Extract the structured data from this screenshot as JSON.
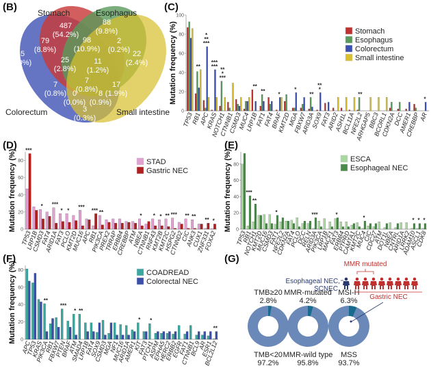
{
  "panels": {
    "B": "(B)",
    "C": "(C)",
    "D": "(D)",
    "E": "(E)",
    "F": "(F)",
    "G": "(G)"
  },
  "colors": {
    "stomach": "#c0302e",
    "esophagus": "#5a9a5a",
    "colorectum": "#3a50b0",
    "small_intestine": "#d8c030",
    "stad": "#e0a0d0",
    "gastric_nec": "#b02020",
    "esca": "#a8d8a0",
    "esophageal_nec": "#4a8a4a",
    "coadread": "#3aa8a0",
    "colorectal_nec": "#3a50a8",
    "donut_main": "#6a88b8",
    "donut_minor": "#1a6a90",
    "mmr_red": "#c0302e",
    "esoph_blue": "#2a3a70"
  },
  "chart_data": [
    {
      "panel": "B",
      "type": "venn",
      "sets": [
        "Stomach",
        "Esophagus",
        "Colorectum",
        "Small intestine"
      ],
      "regions": [
        {
          "sets": [
            "Stomach"
          ],
          "count": "487",
          "pct": "(54.2%)"
        },
        {
          "sets": [
            "Esophagus"
          ],
          "count": "88",
          "pct": "(9.8%)"
        },
        {
          "sets": [
            "Colorectum"
          ],
          "count": "45",
          "pct": "(5.0%)"
        },
        {
          "sets": [
            "Small intestine"
          ],
          "count": "22",
          "pct": "(2.4%)"
        },
        {
          "sets": [
            "Stomach",
            "Colorectum"
          ],
          "count": "79",
          "pct": "(8.8%)"
        },
        {
          "sets": [
            "Stomach",
            "Esophagus"
          ],
          "count": "98",
          "pct": "(10.9%)"
        },
        {
          "sets": [
            "Esophagus",
            "Small intestine"
          ],
          "count": "2",
          "pct": "(0.2%)"
        },
        {
          "sets": [
            "Stomach",
            "Esophagus",
            "Colorectum"
          ],
          "count": "25",
          "pct": "(2.8%)"
        },
        {
          "sets": [
            "Stomach",
            "Esophagus",
            "Small intestine"
          ],
          "count": "11",
          "pct": "(1.2%)"
        },
        {
          "sets": [
            "Esophagus",
            "Colorectum"
          ],
          "count": "7",
          "pct": "(0.8%)"
        },
        {
          "sets": [
            "All four"
          ],
          "count": "7",
          "pct": "(0.8%)"
        },
        {
          "sets": [
            "Stomach",
            "Small intestine"
          ],
          "count": "17",
          "pct": "(1.9%)"
        },
        {
          "sets": [
            "Esophagus",
            "Colorectum",
            "Small intestine"
          ],
          "count": "0",
          "pct": "(0.0%)"
        },
        {
          "sets": [
            "Stomach",
            "Colorectum",
            "Small intestine"
          ],
          "count": "8",
          "pct": "(0.9%)"
        },
        {
          "sets": [
            "Colorectum",
            "Small intestine"
          ],
          "count": "3",
          "pct": "(0.3%)"
        }
      ]
    },
    {
      "panel": "C",
      "type": "bar",
      "title": "",
      "ylabel": "Mutation frequency (%)",
      "ylim": [
        0,
        100
      ],
      "yticks": [
        0,
        20,
        40,
        60,
        80,
        100
      ],
      "legend_position": "top-right",
      "categories": [
        "TP53",
        "RB1",
        "APC",
        "KRAS",
        "NOTCH1",
        "CTNNB1",
        "CSMD3",
        "MUC4",
        "LRP1B",
        "FAT1",
        "FAT4",
        "BRAF",
        "KMT2D",
        "MGA",
        "FBXW7",
        "ARID3A",
        "SOX9",
        "FAT3",
        "ARID2",
        "ASH1L",
        "BCL11A",
        "NFE2L2",
        "ARHGAP5",
        "BBC3",
        "BCORL1",
        "CDKN2A",
        "DCC",
        "AMER1",
        "CREBBP",
        "AR"
      ],
      "series": [
        {
          "name": "Stomach",
          "color_key": "stomach",
          "values": [
            87,
            18,
            11,
            1,
            5,
            9,
            12,
            2,
            22,
            5,
            14,
            1,
            10,
            3,
            3,
            2,
            1,
            8,
            3,
            3,
            1,
            1,
            0,
            0,
            0,
            3,
            2,
            2,
            7,
            0
          ]
        },
        {
          "name": "Esophagus",
          "color_key": "esophagus",
          "values": [
            93,
            41,
            3,
            0,
            31,
            3,
            7,
            10,
            0,
            17,
            7,
            0,
            17,
            3,
            7,
            14,
            0,
            0,
            0,
            0,
            0,
            14,
            0,
            0,
            0,
            9,
            9,
            0,
            3,
            0
          ]
        },
        {
          "name": "Colorectum",
          "color_key": "colorectum",
          "values": [
            76,
            24,
            67,
            43,
            0,
            0,
            5,
            10,
            10,
            10,
            10,
            14,
            0,
            19,
            14,
            4,
            19,
            9,
            0,
            0,
            0,
            0,
            0,
            0,
            0,
            0,
            0,
            9,
            0,
            9
          ]
        },
        {
          "name": "Small intestine",
          "color_key": "small_intestine",
          "values": [
            86,
            43,
            14,
            14,
            14,
            29,
            14,
            14,
            0,
            0,
            0,
            14,
            0,
            0,
            0,
            0,
            0,
            0,
            14,
            14,
            14,
            0,
            14,
            14,
            14,
            0,
            0,
            0,
            0,
            0
          ]
        }
      ],
      "significance": [
        "",
        "**",
        "*** / ** / *",
        "*** / ***",
        "*** / * / **",
        "",
        "",
        "",
        "**",
        "**",
        "",
        "*",
        "",
        "*",
        "",
        "**",
        "* / **",
        "",
        "",
        "",
        "",
        "**",
        "",
        "",
        "",
        "",
        "",
        "",
        "",
        "*"
      ]
    },
    {
      "panel": "D",
      "type": "bar",
      "ylabel": "Mutation frequency (%)",
      "ylim": [
        0,
        90
      ],
      "yticks": [
        0,
        20,
        40,
        60,
        80
      ],
      "legend_position": "top-right",
      "categories": [
        "TP53",
        "LRP1B",
        "CSMD3",
        "FAT4",
        "ARID1A",
        "FAT3",
        "PCLO",
        "KMT2D",
        "MUC16",
        "APC",
        "RB1",
        "PIK3CA",
        "PREX2",
        "TRRAP",
        "ERBB4",
        "CREBBP",
        "ATM",
        "NBEA",
        "CTNNB1",
        "RNF43",
        "KMT2B",
        "KMT2C",
        "HSPG2",
        "CTNND2",
        "CIC",
        "ANK3",
        "CUX1",
        "ZNF331",
        "FOXA2"
      ],
      "series": [
        {
          "name": "STAD",
          "color_key": "stad",
          "values": [
            47,
            26,
            23,
            20,
            25,
            18,
            18,
            16,
            22,
            12,
            4,
            16,
            11,
            12,
            12,
            9,
            9,
            12,
            6,
            12,
            11,
            12,
            13,
            8,
            12,
            11,
            6,
            1,
            0.5
          ]
        },
        {
          "name": "Gastric NEC",
          "color_key": "gastric_nec",
          "values": [
            88,
            22,
            12,
            15,
            7,
            9,
            8,
            10,
            4,
            11,
            18,
            5,
            8,
            7,
            7,
            8,
            7,
            4,
            9,
            4,
            4,
            3,
            1,
            6,
            1,
            1,
            6,
            7,
            6
          ]
        }
      ],
      "significance": [
        "***",
        "",
        "*",
        "",
        "***",
        "*",
        "*",
        "",
        "***",
        "",
        "***",
        "**",
        "",
        "",
        "",
        "",
        "",
        "*",
        "",
        "*",
        "*",
        "**",
        "***",
        "",
        "**",
        "**",
        "",
        "**",
        "*"
      ]
    },
    {
      "panel": "E",
      "type": "bar",
      "ylabel": "Mutation frequency (%)",
      "ylim": [
        0,
        95
      ],
      "yticks": [
        0,
        20,
        40,
        60,
        80
      ],
      "legend_position": "top-right",
      "categories": [
        "TP53",
        "RB1",
        "NOTCH1",
        "KMT2D",
        "MUC16",
        "CSMD3",
        "FAT1",
        "NFE2L2",
        "CDKN2A",
        "FAT4",
        "PCLO",
        "DCC",
        "RELN",
        "ARID3A",
        "PIK3CA",
        "LRP1B",
        "MACF1",
        "FAT3",
        "ERBB4",
        "PTPRD",
        "CAMTA1",
        "KMT2C",
        "MUC4",
        "CIC",
        "CDC27",
        "ATM",
        "DOT1L",
        "NBEA",
        "CNTRL",
        "ARID1A",
        "LRRK2",
        "ADAM10",
        "ASCL1",
        "CDK8"
      ],
      "series": [
        {
          "name": "ESCA",
          "color_key": "esca",
          "values": [
            80,
            4,
            9,
            17,
            18,
            18,
            6,
            9,
            10,
            11,
            14,
            7,
            7,
            1,
            10,
            13,
            9,
            13,
            9,
            9,
            5,
            8,
            1,
            4,
            3,
            9,
            2,
            8,
            2,
            8,
            8,
            1,
            1,
            1
          ]
        },
        {
          "name": "Esophageal NEC",
          "color_key": "esophageal_nec",
          "values": [
            93,
            41,
            31,
            17,
            7,
            7,
            17,
            14,
            10,
            7,
            3,
            10,
            10,
            14,
            3,
            0,
            3,
            14,
            3,
            3,
            7,
            3,
            10,
            7,
            7,
            0,
            7,
            0,
            7,
            0,
            0,
            7,
            7,
            7
          ]
        }
      ],
      "significance": [
        "",
        "***",
        "**",
        "",
        "",
        "",
        "*",
        "",
        "",
        "",
        "",
        "",
        "",
        "***",
        "",
        "",
        "",
        "*",
        "",
        "",
        "",
        "",
        "*",
        "",
        "",
        "",
        "",
        "",
        "",
        "",
        "",
        "*",
        "*",
        "*"
      ]
    },
    {
      "panel": "F",
      "type": "bar",
      "ylabel": "Mutation frequency (%)",
      "ylim": [
        0,
        85
      ],
      "yticks": [
        0,
        20,
        40,
        60,
        80
      ],
      "legend_position": "top-right",
      "categories": [
        "APC",
        "TP53",
        "KRAS",
        "PIK3CA",
        "RB1",
        "FBXW7",
        "PTEN",
        "BRAF",
        "ATM",
        "SMAD4",
        "LRP1B",
        "FAT4",
        "SOX9",
        "CSMD3",
        "MGA",
        "NF1",
        "MUC16",
        "ARID1A",
        "AMER1",
        "KIT",
        "FAT3",
        "PTCH1",
        "ASPM",
        "EPHA5",
        "HERC2",
        "ERBB2",
        "EGFR",
        "FAT1",
        "CTNNB1",
        "BCL9",
        "AR",
        "ESR1",
        "BCL2L12"
      ],
      "series": [
        {
          "name": "COADREAD",
          "color_key": "coadread",
          "values": [
            81,
            65,
            46,
            41,
            18,
            25,
            35,
            21,
            29,
            29,
            19,
            19,
            8,
            22,
            7,
            19,
            17,
            16,
            11,
            19,
            9,
            18,
            7,
            7,
            7,
            6,
            16,
            6,
            16,
            5,
            5,
            4,
            0.5
          ]
        },
        {
          "name": "Colorectal NEC",
          "color_key": "colorectal_nec",
          "values": [
            67,
            76,
            43,
            9,
            24,
            14,
            0,
            14,
            5,
            0,
            9,
            9,
            19,
            5,
            19,
            5,
            5,
            5,
            9,
            0,
            9,
            0,
            9,
            9,
            9,
            9,
            0,
            9,
            0,
            9,
            9,
            9,
            9
          ]
        }
      ],
      "significance": [
        "",
        "",
        "",
        "**",
        "",
        "",
        "***",
        "",
        "*",
        "**",
        "",
        "",
        "",
        "",
        "",
        "",
        "",
        "",
        "",
        "*",
        "",
        "*",
        "",
        "",
        "",
        "",
        "",
        "",
        "",
        "",
        "",
        "",
        "**"
      ]
    },
    {
      "panel": "G",
      "type": "pie",
      "donuts": [
        {
          "top_label": "TMB≥20",
          "top_value": "2.8%",
          "bottom_label": "TMB<20",
          "bottom_value": "97.2%",
          "minor_fraction": 2.8
        },
        {
          "top_label": "MMR-mutated",
          "top_value": "4.2%",
          "bottom_label": "MMR-wild type",
          "bottom_value": "95.8%",
          "minor_fraction": 4.2
        },
        {
          "top_label": "MSI-H",
          "top_value": "6.3%",
          "bottom_label": "MSS",
          "bottom_value": "93.7%",
          "minor_fraction": 6.3
        }
      ],
      "annotation": {
        "mmr_label": "MMR mutated",
        "esoph_label_1": "Esophageal NEC,",
        "esoph_label_2": "SCNEC",
        "gastric_label": "Gastric NEC",
        "gastric_count": 8,
        "esoph_count": 1
      }
    }
  ]
}
